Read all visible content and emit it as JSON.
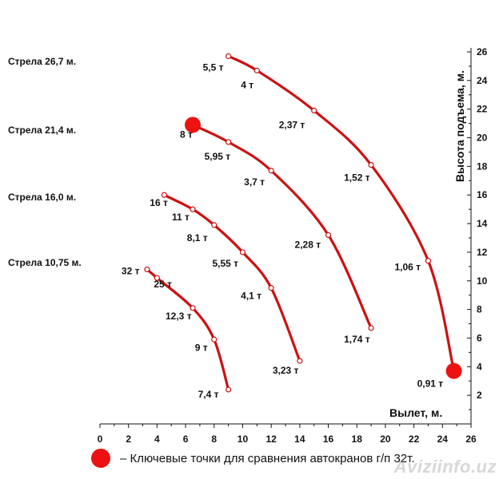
{
  "chart_data": {
    "type": "line",
    "xlabel": "Вылет, м.",
    "ylabel": "Высота подъема, м.",
    "xlim": [
      0,
      26
    ],
    "ylim": [
      0,
      26
    ],
    "x_ticks": [
      0,
      2,
      4,
      6,
      8,
      10,
      12,
      14,
      16,
      18,
      20,
      22,
      24,
      26
    ],
    "y_ticks": [
      2,
      4,
      6,
      8,
      10,
      12,
      14,
      16,
      18,
      20,
      22,
      24,
      26
    ],
    "grid": false,
    "series": [
      {
        "name": "Стрела 10,75 м.",
        "label_y": 11.2,
        "points": [
          {
            "x": 3.3,
            "y": 10.8,
            "load": "32 т"
          },
          {
            "x": 4.0,
            "y": 10.2,
            "load": "25 т"
          },
          {
            "x": 6.5,
            "y": 8.1,
            "load": "12,3 т"
          },
          {
            "x": 8.0,
            "y": 5.9,
            "load": "9 т"
          },
          {
            "x": 9.0,
            "y": 2.4,
            "load": "7,4 т"
          }
        ]
      },
      {
        "name": "Стрела 16,0 м.",
        "label_y": 15.8,
        "points": [
          {
            "x": 4.5,
            "y": 16.0,
            "load": "16 т"
          },
          {
            "x": 6.5,
            "y": 15.0,
            "load": "11 т"
          },
          {
            "x": 8.0,
            "y": 13.9,
            "load": "8,1 т"
          },
          {
            "x": 10.0,
            "y": 12.0,
            "load": "5,55 т"
          },
          {
            "x": 12.0,
            "y": 9.5,
            "load": "4,1 т"
          },
          {
            "x": 14.0,
            "y": 4.4,
            "load": "3,23 т"
          }
        ]
      },
      {
        "name": "Стрела 21,4 м.",
        "label_y": 20.5,
        "points": [
          {
            "x": 6.5,
            "y": 20.9,
            "load": "8 т"
          },
          {
            "x": 9.0,
            "y": 19.7,
            "load": "5,95 т"
          },
          {
            "x": 12.0,
            "y": 17.7,
            "load": "3,7 т"
          },
          {
            "x": 16.0,
            "y": 13.2,
            "load": "2,28 т"
          },
          {
            "x": 19.0,
            "y": 6.7,
            "load": "1,74 т"
          }
        ]
      },
      {
        "name": "Стрела 26,7 м.",
        "label_y": 25.3,
        "points": [
          {
            "x": 9.0,
            "y": 25.7,
            "load": "5,5 т"
          },
          {
            "x": 11.0,
            "y": 24.7,
            "load": "4 т"
          },
          {
            "x": 15.0,
            "y": 21.9,
            "load": "2,37 т"
          },
          {
            "x": 19.0,
            "y": 18.1,
            "load": "1,52 т"
          },
          {
            "x": 23.0,
            "y": 11.4,
            "load": "1,06 т"
          },
          {
            "x": 24.8,
            "y": 3.7,
            "load": "0,91 т"
          }
        ]
      }
    ],
    "key_points": [
      {
        "x": 6.5,
        "y": 20.9
      },
      {
        "x": 24.8,
        "y": 3.7
      }
    ],
    "legend": "– Ключевые точки для сравнения автокранов г/п 32т."
  },
  "watermark": "Aviziinfo.uz",
  "colors": {
    "curve": "#cc1111",
    "key_point": "#ee1111",
    "axis": "#111111",
    "text": "#111111"
  }
}
